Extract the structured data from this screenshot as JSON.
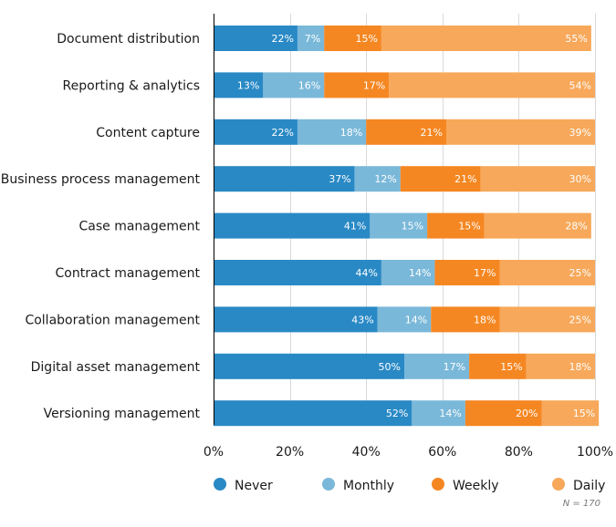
{
  "chart_data": {
    "type": "bar",
    "orientation": "horizontal",
    "stacked": true,
    "title": "",
    "xlabel": "",
    "ylabel": "",
    "xlim": [
      0,
      100
    ],
    "x_ticks": [
      "0%",
      "20%",
      "40%",
      "60%",
      "80%",
      "100%"
    ],
    "x_tick_values": [
      0,
      20,
      40,
      60,
      80,
      100
    ],
    "grid": true,
    "legend_position": "bottom",
    "categories": [
      "Document distribution",
      "Reporting & analytics",
      "Content capture",
      "Business process management",
      "Case management",
      "Contract management",
      "Collaboration management",
      "Digital asset management",
      "Versioning management"
    ],
    "series": [
      {
        "name": "Never",
        "color": "#2989c5",
        "values": [
          22,
          13,
          22,
          37,
          41,
          44,
          43,
          50,
          52
        ]
      },
      {
        "name": "Monthly",
        "color": "#7ab8d9",
        "values": [
          7,
          16,
          18,
          12,
          15,
          14,
          14,
          17,
          14
        ]
      },
      {
        "name": "Weekly",
        "color": "#f58722",
        "values": [
          15,
          17,
          21,
          21,
          15,
          17,
          18,
          15,
          20
        ]
      },
      {
        "name": "Daily",
        "color": "#f7a85a",
        "values": [
          55,
          54,
          39,
          30,
          28,
          25,
          25,
          18,
          15
        ]
      }
    ],
    "value_label_suffix": "%",
    "annotation": "N = 170"
  }
}
